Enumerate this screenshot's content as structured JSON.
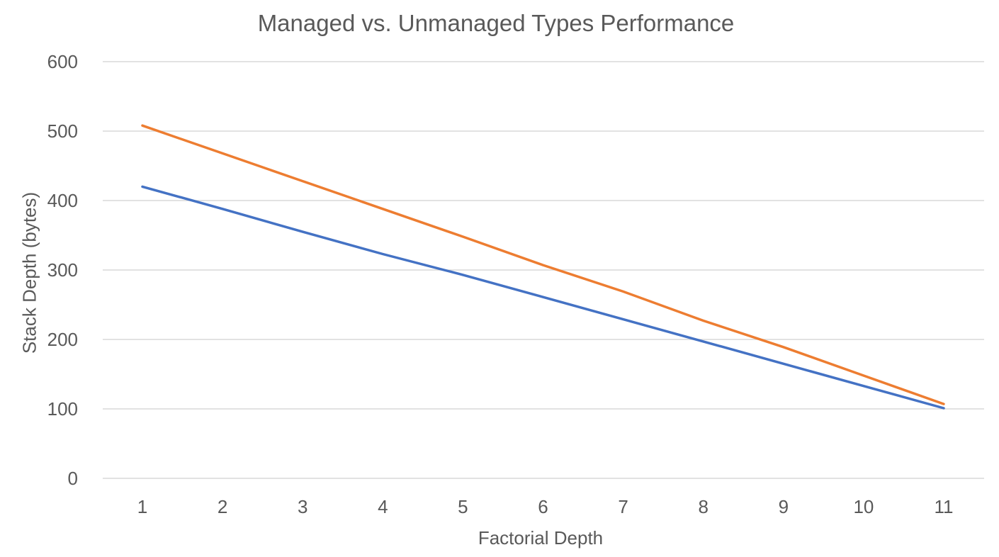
{
  "chart_data": {
    "type": "line",
    "title": "Managed vs. Unmanaged Types Performance",
    "xlabel": "Factorial Depth",
    "ylabel": "Stack Depth (bytes)",
    "categories": [
      "1",
      "2",
      "3",
      "4",
      "5",
      "6",
      "7",
      "8",
      "9",
      "10",
      "11"
    ],
    "ylim": [
      0,
      600
    ],
    "yticks": [
      0,
      100,
      200,
      300,
      400,
      500,
      600
    ],
    "grid": true,
    "legend": "none",
    "series": [
      {
        "color": "#4472C4",
        "values": [
          420,
          388,
          355,
          323,
          293,
          261,
          229,
          197,
          165,
          133,
          101
        ]
      },
      {
        "color": "#ED7D31",
        "values": [
          508,
          468,
          428,
          388,
          348,
          307,
          269,
          227,
          189,
          148,
          107
        ]
      }
    ]
  }
}
